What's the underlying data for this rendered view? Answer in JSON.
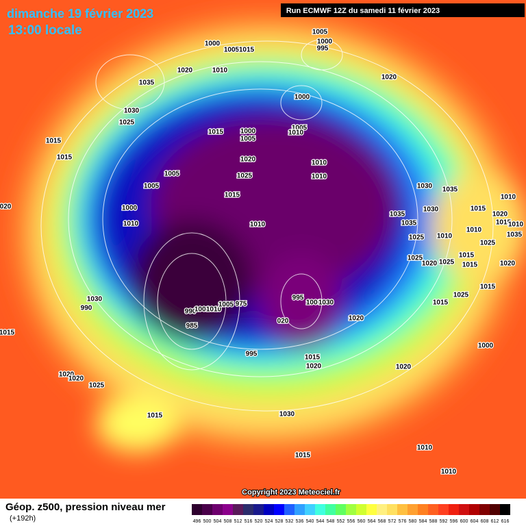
{
  "header": {
    "date": "dimanche 19 février 2023",
    "time": "13:00 locale",
    "run": "Run ECMWF 12Z du samedi 11 février 2023"
  },
  "copyright": "Copyright 2023 Meteociel.fr",
  "footer": {
    "title": "Géop. z500, pression niveau mer",
    "lead_time": "(+192h)"
  },
  "scale": {
    "labels": [
      496,
      500,
      504,
      508,
      512,
      516,
      520,
      524,
      528,
      532,
      536,
      540,
      544,
      548,
      552,
      556,
      560,
      564,
      568,
      572,
      576,
      580,
      584,
      588,
      592,
      596,
      600,
      604,
      608,
      612,
      616
    ],
    "colors": [
      "#2e002e",
      "#4a004a",
      "#6e006e",
      "#8c008c",
      "#5a1a5a",
      "#2c2c6c",
      "#1a1a8c",
      "#0000c0",
      "#0000ff",
      "#2060ff",
      "#30a0ff",
      "#40d0ff",
      "#40ffe0",
      "#40ffa0",
      "#60ff60",
      "#a0ff40",
      "#d0ff30",
      "#ffff40",
      "#fff080",
      "#ffe060",
      "#ffc040",
      "#ffa030",
      "#ff8020",
      "#ff6020",
      "#ff4020",
      "#f02010",
      "#d01010",
      "#b00000",
      "#800000",
      "#500000",
      "#000000"
    ]
  },
  "isobars": [
    "1005",
    "1000",
    "995",
    "1000",
    "1005",
    "1015",
    "1020",
    "1010",
    "1035",
    "1020",
    "1000",
    "1030",
    "1025",
    "1015",
    "1000",
    "1005",
    "1005",
    "1010",
    "1015",
    "1015",
    "1020",
    "1010",
    "1005",
    "1025",
    "1010",
    "1005",
    "1030",
    "1035",
    "1015",
    "1010",
    "1000",
    "1030",
    "1015",
    "1035",
    "1020",
    "1015",
    "020",
    "1010",
    "1010",
    "1035",
    "1010",
    "1010",
    "1035",
    "1025",
    "1010",
    "1025",
    "1025",
    "1020",
    "1025",
    "1015",
    "1015",
    "1020",
    "1015",
    "1025",
    "1030",
    "990",
    "995",
    "1000",
    "1030",
    "1015",
    "975",
    "985",
    "990",
    "1000",
    "1010",
    "1005",
    "020",
    "1015",
    "1020",
    "1000",
    "995",
    "1015",
    "1020",
    "1020",
    "1020",
    "1020",
    "1025",
    "1015",
    "1030",
    "1010",
    "1015",
    "1010"
  ]
}
